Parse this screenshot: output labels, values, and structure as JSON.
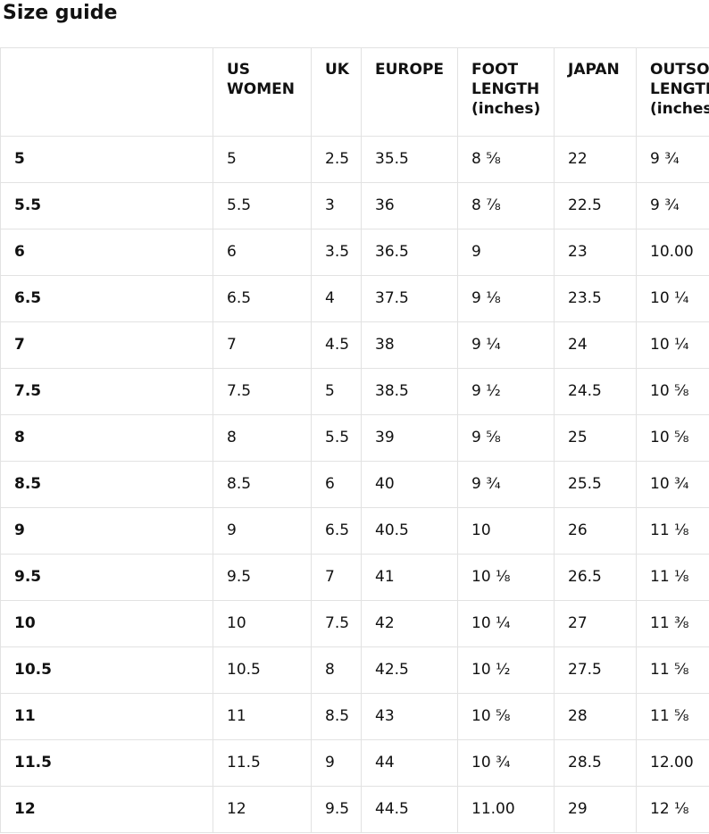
{
  "page": {
    "title": "Size guide"
  },
  "colors": {
    "background": "#ffffff",
    "text": "#111111",
    "border": "#e2e2e2"
  },
  "table": {
    "columns": [
      "",
      "US WOMEN",
      "UK",
      "EUROPE",
      "FOOT LENGTH (inches)",
      "JAPAN",
      "OUTSOLE LENGTH (inches)"
    ],
    "rows": [
      [
        "5",
        "5",
        "2.5",
        "35.5",
        "8 ⅝",
        "22",
        "9 ¾"
      ],
      [
        "5.5",
        "5.5",
        "3",
        "36",
        "8 ⅞",
        "22.5",
        "9 ¾"
      ],
      [
        "6",
        "6",
        "3.5",
        "36.5",
        "9",
        "23",
        "10.00"
      ],
      [
        "6.5",
        "6.5",
        "4",
        "37.5",
        "9 ⅛",
        "23.5",
        "10 ¼"
      ],
      [
        "7",
        "7",
        "4.5",
        "38",
        "9 ¼",
        "24",
        "10 ¼"
      ],
      [
        "7.5",
        "7.5",
        "5",
        "38.5",
        "9 ½",
        "24.5",
        "10 ⅝"
      ],
      [
        "8",
        "8",
        "5.5",
        "39",
        "9 ⅝",
        "25",
        "10 ⅝"
      ],
      [
        "8.5",
        "8.5",
        "6",
        "40",
        "9 ¾",
        "25.5",
        "10 ¾"
      ],
      [
        "9",
        "9",
        "6.5",
        "40.5",
        "10",
        "26",
        "11 ⅛"
      ],
      [
        "9.5",
        "9.5",
        "7",
        "41",
        "10 ⅛",
        "26.5",
        "11 ⅛"
      ],
      [
        "10",
        "10",
        "7.5",
        "42",
        "10 ¼",
        "27",
        "11 ⅜"
      ],
      [
        "10.5",
        "10.5",
        "8",
        "42.5",
        "10 ½",
        "27.5",
        "11 ⅝"
      ],
      [
        "11",
        "11",
        "8.5",
        "43",
        "10 ⅝",
        "28",
        "11 ⅝"
      ],
      [
        "11.5",
        "11.5",
        "9",
        "44",
        "10 ¾",
        "28.5",
        "12.00"
      ],
      [
        "12",
        "12",
        "9.5",
        "44.5",
        "11.00",
        "29",
        "12 ⅛"
      ]
    ]
  }
}
